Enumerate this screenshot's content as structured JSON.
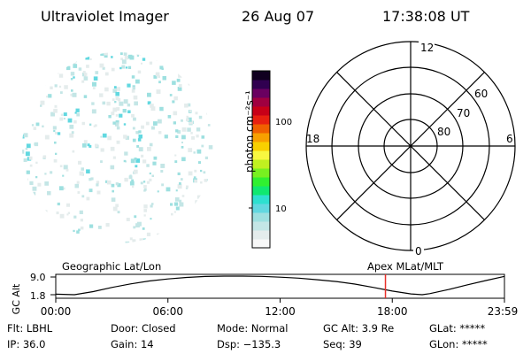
{
  "header": {
    "title": "Ultraviolet Imager",
    "date": "26 Aug 07",
    "time": "17:38:08 UT"
  },
  "colorbar": {
    "unit_label": "photon cm⁻²s⁻¹",
    "ticks": [
      {
        "label": "100",
        "frac": 0.715
      },
      {
        "label": "10",
        "frac": 0.225
      }
    ],
    "colors": [
      "#f8f8f8",
      "#e4ecec",
      "#c4e6e6",
      "#9ee0e0",
      "#62d8e0",
      "#2ee0d0",
      "#10e870",
      "#30f030",
      "#78f020",
      "#c0f020",
      "#f8f840",
      "#f8d000",
      "#f8a000",
      "#f06000",
      "#e82010",
      "#c80018",
      "#a00040",
      "#6a0060",
      "#300050",
      "#100020"
    ]
  },
  "image_panel": {
    "marker_colors": [
      "#62d8e0",
      "#c4e6e6",
      "#e4ecec",
      "#9ee0e0"
    ]
  },
  "polar": {
    "labels": {
      "top": "12",
      "bottom": "0",
      "left": "18",
      "right": "6"
    },
    "rings": [
      {
        "label": "60"
      },
      {
        "label": "70"
      },
      {
        "label": "80"
      }
    ]
  },
  "chart_data": {
    "type": "line",
    "title_left": "Geographic Lat/Lon",
    "title_right": "Apex MLat/MLT",
    "ylabel": "GC Alt",
    "yticks": [
      "9.0",
      "1.8"
    ],
    "ylim": [
      1.8,
      9.0
    ],
    "xlim_hours": [
      0,
      24
    ],
    "xticks": [
      "00:00",
      "06:00",
      "12:00",
      "18:00",
      "23:59"
    ],
    "marker_hour": 17.635,
    "marker_color": "#e8302a",
    "x": [
      0,
      1.0,
      2,
      3,
      4,
      5,
      6,
      7,
      8,
      9,
      10,
      11,
      12,
      13,
      14,
      15,
      16,
      17,
      18,
      19,
      19.6,
      20,
      21,
      22,
      23,
      24
    ],
    "y": [
      2.0,
      1.8,
      3.0,
      4.6,
      6.0,
      7.1,
      7.9,
      8.5,
      8.85,
      9.0,
      9.0,
      8.9,
      8.6,
      8.2,
      7.6,
      6.9,
      5.9,
      4.6,
      3.2,
      2.1,
      1.8,
      2.2,
      3.8,
      5.6,
      7.3,
      8.9
    ]
  },
  "info": {
    "filter": "Flt: LBHL",
    "ip": "IP: 36.0",
    "door": "Door: Closed",
    "gain": "Gain: 14",
    "mode": "Mode: Normal",
    "dsp": "Dsp: −135.3",
    "gc_alt": "GC Alt: 3.9 Re",
    "seq": "Seq: 39",
    "glat": "GLat: *****",
    "glon": "GLon: *****"
  }
}
